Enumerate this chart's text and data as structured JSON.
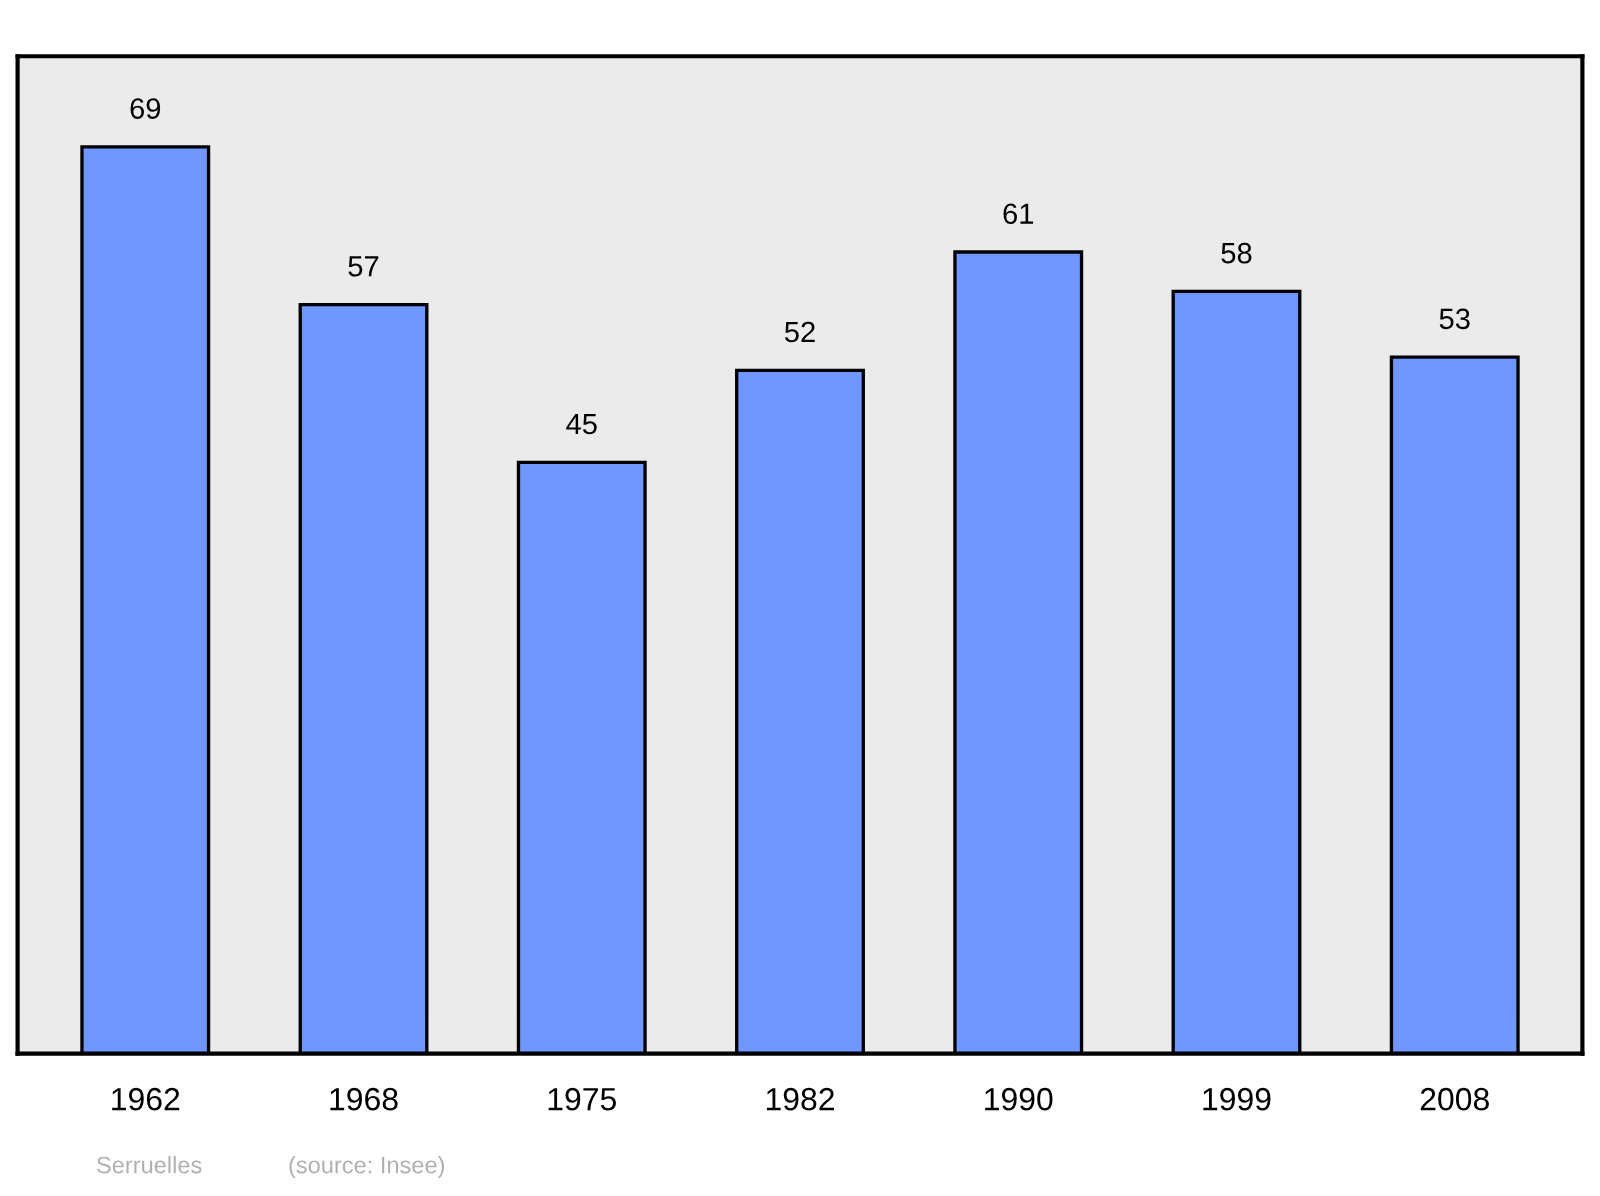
{
  "chart_data": {
    "type": "bar",
    "categories": [
      "1962",
      "1968",
      "1975",
      "1982",
      "1990",
      "1999",
      "2008"
    ],
    "values": [
      69,
      57,
      45,
      52,
      61,
      58,
      53
    ],
    "color": "#7096ff",
    "data_labels": true,
    "grid": false,
    "tick_labels": "x",
    "annotations": [
      "Serruelles",
      "(source: Insee)"
    ]
  }
}
